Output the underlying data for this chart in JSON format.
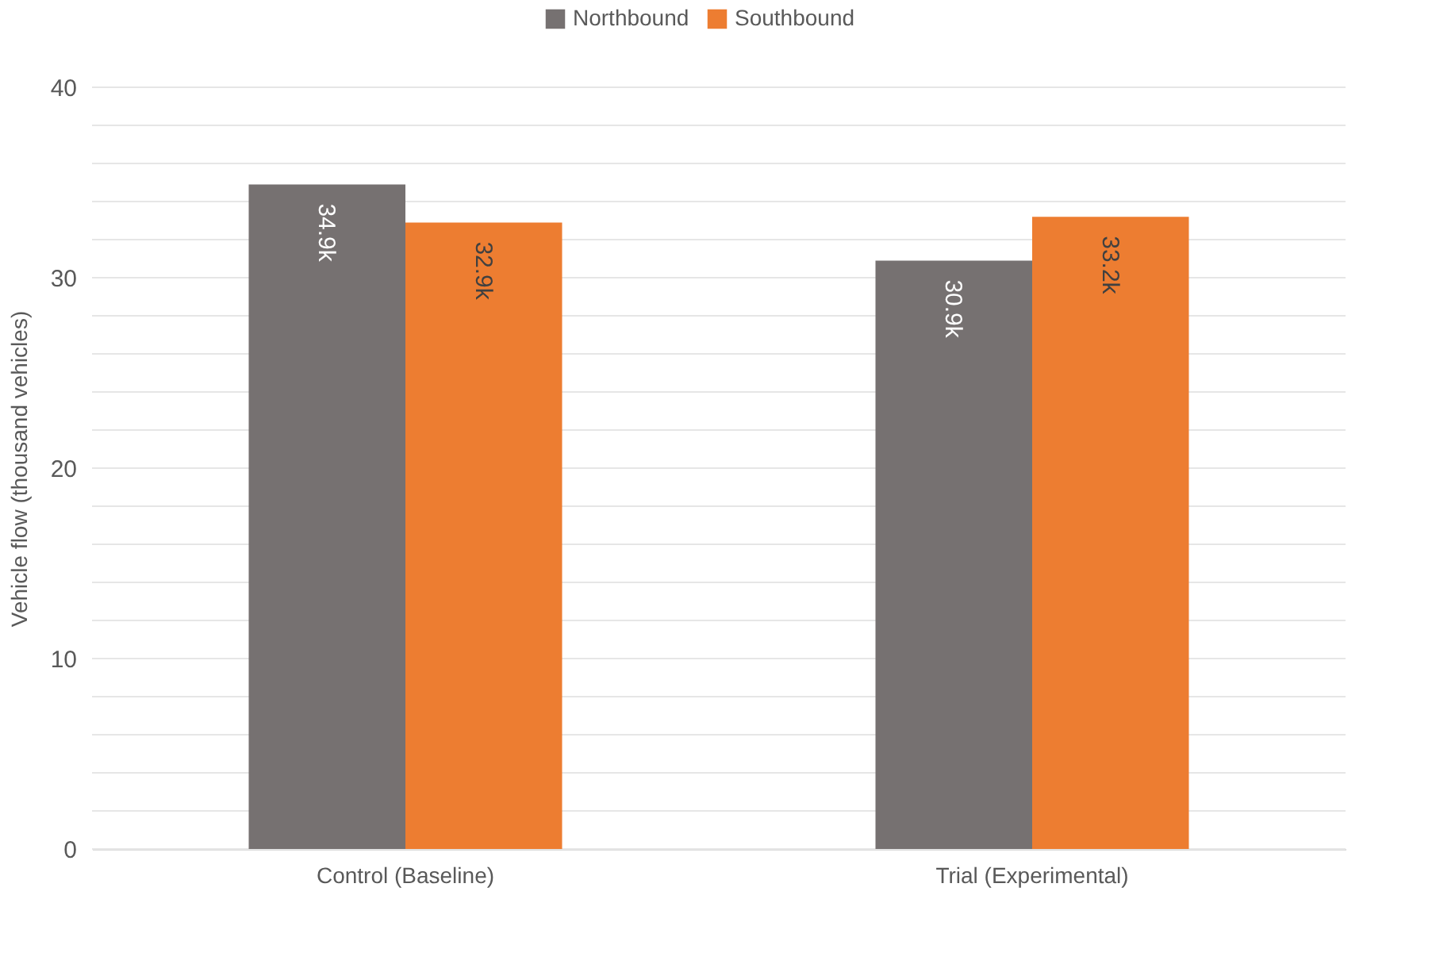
{
  "chart_data": {
    "type": "bar",
    "ylabel": "Vehicle flow (thousand vehicles)",
    "categories": [
      "Control (Baseline)",
      "Trial (Experimental)"
    ],
    "series": [
      {
        "name": "Northbound",
        "color": "#767171",
        "values": [
          34.9,
          30.9
        ],
        "value_labels": [
          "34.9k",
          "30.9k"
        ]
      },
      {
        "name": "Southbound",
        "color": "#ed7d31",
        "values": [
          32.9,
          33.2
        ],
        "value_labels": [
          "32.9k",
          "33.2k"
        ]
      }
    ],
    "ylim": [
      0,
      40
    ],
    "yticks": [
      0,
      {
        "value": 2,
        "label": null
      },
      {
        "value": 4,
        "label": null
      },
      {
        "value": 6,
        "label": null
      },
      {
        "value": 8,
        "label": null
      },
      10,
      {
        "value": 12,
        "label": null
      },
      {
        "value": 14,
        "label": null
      },
      {
        "value": 16,
        "label": null
      },
      {
        "value": 18,
        "label": null
      },
      20,
      {
        "value": 22,
        "label": null
      },
      {
        "value": 24,
        "label": null
      },
      {
        "value": 26,
        "label": null
      },
      {
        "value": 28,
        "label": null
      },
      30,
      {
        "value": 32,
        "label": null
      },
      {
        "value": 34,
        "label": null
      },
      {
        "value": 36,
        "label": null
      },
      {
        "value": 38,
        "label": null
      },
      40
    ],
    "grid": "y",
    "legend": "top"
  }
}
